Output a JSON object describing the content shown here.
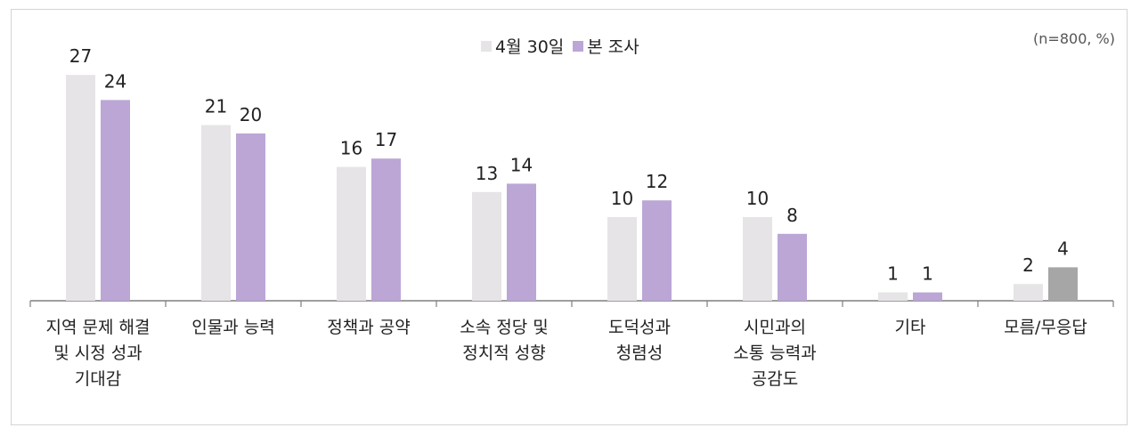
{
  "sample_note": "(n=800, %)",
  "colors": {
    "series1": "#e6e4e6",
    "series2": "#bba6d6",
    "highlight": "#a6a6a6",
    "axis": "#7f7f7f"
  },
  "chart_data": {
    "type": "bar",
    "categories": [
      "지역 문제 해결\n및 시정 성과\n기대감",
      "인물과 능력",
      "정책과 공약",
      "소속 정당 및\n정치적 성향",
      "도덕성과\n청렴성",
      "시민과의\n소통 능력과\n공감도",
      "기타",
      "모름/무응답"
    ],
    "series": [
      {
        "name": "4월 30일",
        "values": [
          27,
          21,
          16,
          13,
          10,
          10,
          1,
          2
        ]
      },
      {
        "name": "본 조사",
        "values": [
          24,
          20,
          17,
          14,
          12,
          8,
          1,
          4
        ]
      }
    ],
    "legend": "top-center",
    "grid": false
  }
}
